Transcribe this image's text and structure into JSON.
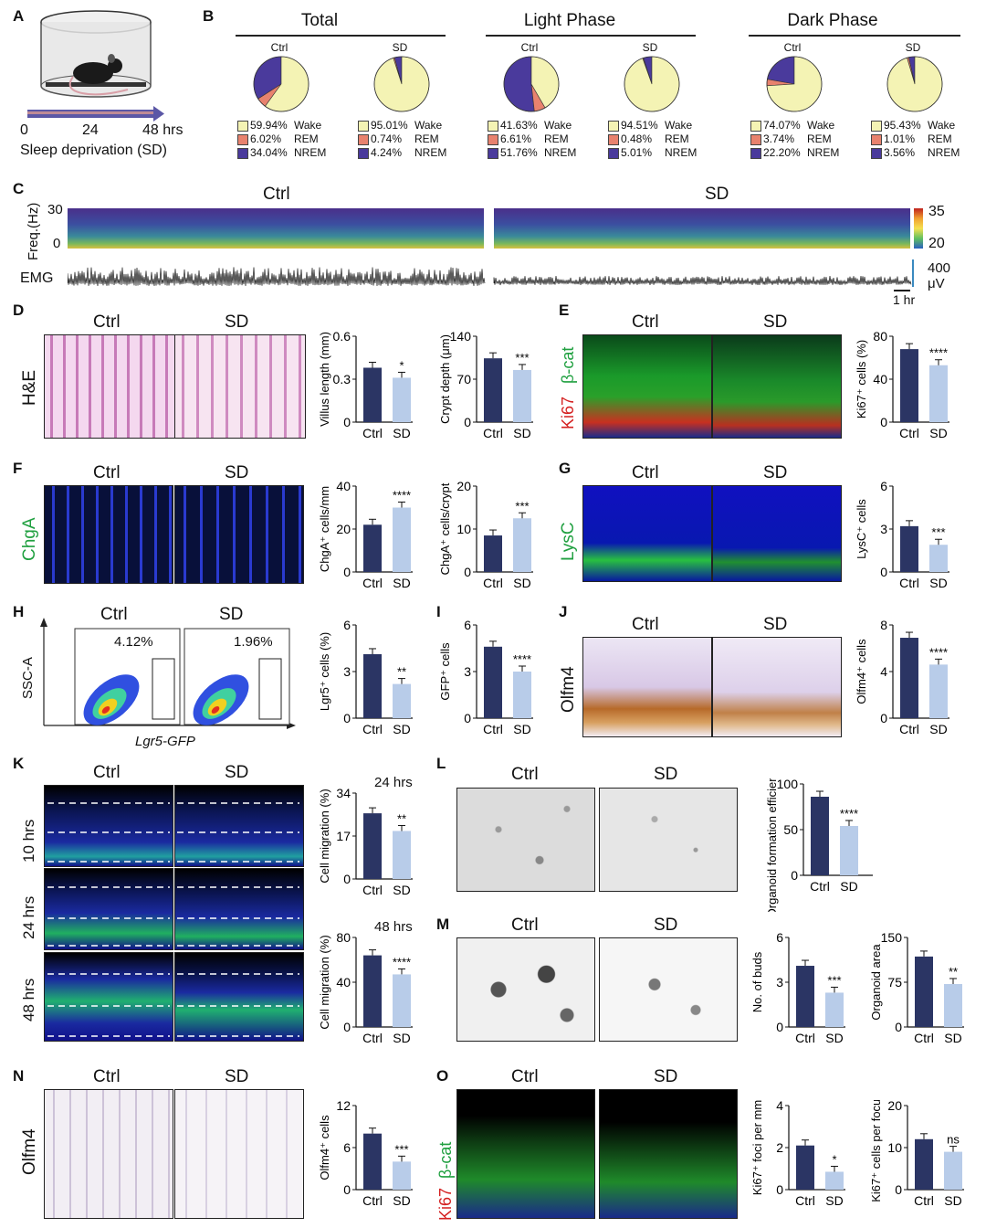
{
  "panelA": {
    "letter": "A",
    "axis_ticks": [
      "0",
      "24",
      "48 hrs"
    ],
    "caption": "Sleep deprivation (SD)"
  },
  "panelB": {
    "letter": "B",
    "groups": [
      {
        "title": "Total",
        "pies": [
          {
            "label": "Ctrl",
            "wake": 59.94,
            "rem": 6.02,
            "nrem": 34.04,
            "txt": [
              "59.94%",
              "6.02%",
              "34.04%"
            ]
          },
          {
            "label": "SD",
            "wake": 95.01,
            "rem": 0.74,
            "nrem": 4.24,
            "txt": [
              "95.01%",
              "0.74%",
              "4.24%"
            ]
          }
        ]
      },
      {
        "title": "Light Phase",
        "pies": [
          {
            "label": "Ctrl",
            "wake": 41.63,
            "rem": 6.61,
            "nrem": 51.76,
            "txt": [
              "41.63%",
              "6.61%",
              "51.76%"
            ]
          },
          {
            "label": "SD",
            "wake": 94.51,
            "rem": 0.48,
            "nrem": 5.01,
            "txt": [
              "94.51%",
              "0.48%",
              "5.01%"
            ]
          }
        ]
      },
      {
        "title": "Dark Phase",
        "pies": [
          {
            "label": "Ctrl",
            "wake": 74.07,
            "rem": 3.74,
            "nrem": 22.2,
            "txt": [
              "74.07%",
              "3.74%",
              "22.20%"
            ]
          },
          {
            "label": "SD",
            "wake": 95.43,
            "rem": 1.01,
            "nrem": 3.56,
            "txt": [
              "95.43%",
              "1.01%",
              "3.56%"
            ]
          }
        ]
      }
    ],
    "legend_names": [
      "Wake",
      "REM",
      "NREM"
    ],
    "colors": {
      "wake": "#f4f3b4",
      "rem": "#e8826e",
      "nrem": "#4a3a9c"
    }
  },
  "panelC": {
    "letter": "C",
    "ctrl": "Ctrl",
    "sd": "SD",
    "ylabel": "Freq.(Hz)",
    "y_hi": "30",
    "y_lo": "0",
    "cbar_hi": "35",
    "cbar_lo": "20",
    "emg": "EMG",
    "emg_scale": "400",
    "emg_unit": "μV",
    "time_scale": "1 hr"
  },
  "panelD": {
    "letter": "D",
    "stain": "H&E",
    "ctrl": "Ctrl",
    "sd": "SD"
  },
  "panelE": {
    "letter": "E",
    "ctrl": "Ctrl",
    "sd": "SD",
    "stain_a": "Ki67",
    "stain_b": "β-cat"
  },
  "panelF": {
    "letter": "F",
    "ctrl": "Ctrl",
    "sd": "SD",
    "stain": "ChgA"
  },
  "panelG": {
    "letter": "G",
    "ctrl": "Ctrl",
    "sd": "SD",
    "stain": "LysC"
  },
  "panelH": {
    "letter": "H",
    "ctrl": "Ctrl",
    "sd": "SD",
    "ylabel": "SSC-A",
    "xlabel": "Lgr5-GFP",
    "pct_ctrl": "4.12%",
    "pct_sd": "1.96%"
  },
  "panelI": {
    "letter": "I"
  },
  "panelJ": {
    "letter": "J",
    "ctrl": "Ctrl",
    "sd": "SD",
    "stain": "Olfm4"
  },
  "panelK": {
    "letter": "K",
    "ctrl": "Ctrl",
    "sd": "SD",
    "rows": [
      "10 hrs",
      "24 hrs",
      "48 hrs"
    ]
  },
  "panelL": {
    "letter": "L",
    "ctrl": "Ctrl",
    "sd": "SD"
  },
  "panelM": {
    "letter": "M",
    "ctrl": "Ctrl",
    "sd": "SD"
  },
  "panelN": {
    "letter": "N",
    "ctrl": "Ctrl",
    "sd": "SD",
    "stain": "Olfm4"
  },
  "panelO": {
    "letter": "O",
    "ctrl": "Ctrl",
    "sd": "SD",
    "stain_a": "Ki67",
    "stain_b": "β-cat"
  },
  "chart_data": [
    {
      "id": "villus",
      "type": "bar",
      "categories": [
        "Ctrl",
        "SD"
      ],
      "values": [
        0.38,
        0.31
      ],
      "ylabel": "Villus length (mm)",
      "yticks": [
        "0",
        "0.3",
        "0.6"
      ],
      "ylim": [
        0,
        0.6
      ],
      "sig": "*"
    },
    {
      "id": "crypt",
      "type": "bar",
      "categories": [
        "Ctrl",
        "SD"
      ],
      "values": [
        104,
        85
      ],
      "ylabel": "Crypt depth (μm)",
      "yticks": [
        "0",
        "70",
        "140"
      ],
      "ylim": [
        0,
        140
      ],
      "sig": "***"
    },
    {
      "id": "ki67",
      "type": "bar",
      "categories": [
        "Ctrl",
        "SD"
      ],
      "values": [
        68,
        53
      ],
      "ylabel": "Ki67⁺ cells (%)",
      "yticks": [
        "0",
        "40",
        "80"
      ],
      "ylim": [
        0,
        80
      ],
      "sig": "****"
    },
    {
      "id": "chgamm",
      "type": "bar",
      "categories": [
        "Ctrl",
        "SD"
      ],
      "values": [
        22,
        30
      ],
      "ylabel": "ChgA⁺ cells/mm",
      "yticks": [
        "0",
        "20",
        "40"
      ],
      "ylim": [
        0,
        40
      ],
      "sig": "****"
    },
    {
      "id": "chgacrypt",
      "type": "bar",
      "categories": [
        "Ctrl",
        "SD"
      ],
      "values": [
        8.5,
        12.5
      ],
      "ylabel": "ChgA⁺ cells/crypt",
      "yticks": [
        "0",
        "10",
        "20"
      ],
      "ylim": [
        0,
        20
      ],
      "sig": "***"
    },
    {
      "id": "lysc",
      "type": "bar",
      "categories": [
        "Ctrl",
        "SD"
      ],
      "values": [
        3.2,
        1.9
      ],
      "ylabel": "LysC⁺ cells",
      "yticks": [
        "0",
        "3",
        "6"
      ],
      "ylim": [
        0,
        6
      ],
      "sig": "***"
    },
    {
      "id": "lgr5",
      "type": "bar",
      "categories": [
        "Ctrl",
        "SD"
      ],
      "values": [
        4.12,
        2.2
      ],
      "ylabel": "Lgr5⁺ cells (%)",
      "yticks": [
        "0",
        "3",
        "6"
      ],
      "ylim": [
        0,
        6
      ],
      "sig": "**"
    },
    {
      "id": "gfp",
      "type": "bar",
      "categories": [
        "Ctrl",
        "SD"
      ],
      "values": [
        4.6,
        3.0
      ],
      "ylabel": "GFP⁺ cells",
      "yticks": [
        "0",
        "3",
        "6"
      ],
      "ylim": [
        0,
        6
      ],
      "sig": "****"
    },
    {
      "id": "olfm4j",
      "type": "bar",
      "categories": [
        "Ctrl",
        "SD"
      ],
      "values": [
        6.9,
        4.6
      ],
      "ylabel": "Olfm4⁺ cells",
      "yticks": [
        "0",
        "4",
        "8"
      ],
      "ylim": [
        0,
        8
      ],
      "sig": "****"
    },
    {
      "id": "mig24",
      "type": "bar",
      "categories": [
        "Ctrl",
        "SD"
      ],
      "values": [
        26,
        19
      ],
      "ylabel": "Cell migration (%)",
      "yticks": [
        "0",
        "17",
        "34"
      ],
      "ylim": [
        0,
        34
      ],
      "sig": "**",
      "title": "24 hrs"
    },
    {
      "id": "mig48",
      "type": "bar",
      "categories": [
        "Ctrl",
        "SD"
      ],
      "values": [
        64,
        47
      ],
      "ylabel": "Cell migration (%)",
      "yticks": [
        "0",
        "40",
        "80"
      ],
      "ylim": [
        0,
        80
      ],
      "sig": "****",
      "title": "48 hrs"
    },
    {
      "id": "organoid",
      "type": "bar",
      "categories": [
        "Ctrl",
        "SD"
      ],
      "values": [
        86,
        54
      ],
      "ylabel": "Organoid formation efficiency (%)",
      "yticks": [
        "0",
        "50",
        "100"
      ],
      "ylim": [
        0,
        100
      ],
      "sig": "****"
    },
    {
      "id": "buds",
      "type": "bar",
      "categories": [
        "Ctrl",
        "SD"
      ],
      "values": [
        4.1,
        2.3
      ],
      "ylabel": "No. of buds",
      "yticks": [
        "0",
        "3",
        "6"
      ],
      "ylim": [
        0,
        6
      ],
      "sig": "***"
    },
    {
      "id": "area",
      "type": "bar",
      "categories": [
        "Ctrl",
        "SD"
      ],
      "values": [
        118,
        72
      ],
      "ylabel": "Organoid area",
      "yticks": [
        "0",
        "75",
        "150"
      ],
      "ylim": [
        0,
        150
      ],
      "sig": "**"
    },
    {
      "id": "olfm4n",
      "type": "bar",
      "categories": [
        "Ctrl",
        "SD"
      ],
      "values": [
        8.0,
        4.0
      ],
      "ylabel": "Olfm4⁺ cells",
      "yticks": [
        "0",
        "6",
        "12"
      ],
      "ylim": [
        0,
        12
      ],
      "sig": "***"
    },
    {
      "id": "foci",
      "type": "bar",
      "categories": [
        "Ctrl",
        "SD"
      ],
      "values": [
        2.1,
        0.85
      ],
      "ylabel": "Ki67⁺ foci per mm",
      "yticks": [
        "0",
        "2",
        "4"
      ],
      "ylim": [
        0,
        4
      ],
      "sig": "*"
    },
    {
      "id": "perfocus",
      "type": "bar",
      "categories": [
        "Ctrl",
        "SD"
      ],
      "values": [
        12,
        9
      ],
      "ylabel": "Ki67⁺ cells per focus",
      "yticks": [
        "0",
        "10",
        "20"
      ],
      "ylim": [
        0,
        20
      ],
      "sig": "ns"
    }
  ]
}
